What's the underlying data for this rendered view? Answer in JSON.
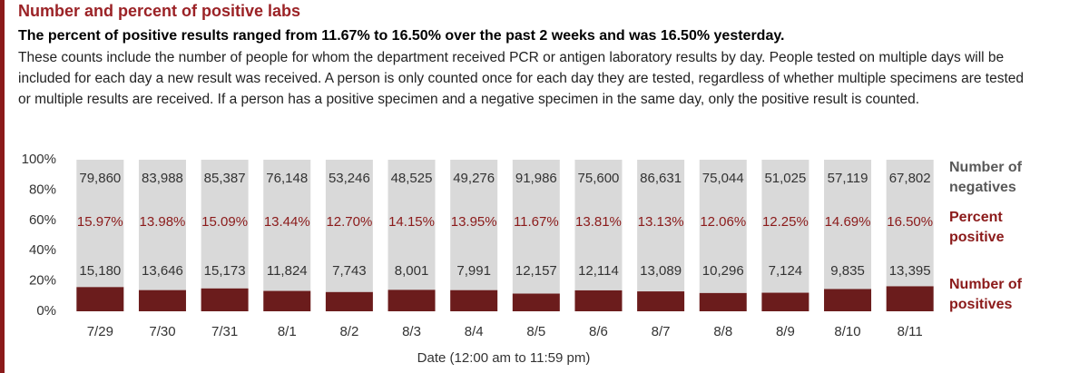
{
  "chart_data": {
    "type": "bar",
    "stacking": "percent",
    "title": "Number and percent of positive labs",
    "subtitle": "The percent of positive results ranged from 11.67% to 16.50% over the past 2 weeks and was 16.50% yesterday.",
    "description": "These counts include the number of people for whom the department received PCR or antigen laboratory results by day. People tested on multiple days will be included for each day a new result was received. A person is only counted once for each day they are tested, regardless of whether multiple specimens are tested or multiple results are received. If a person has a positive specimen and a negative specimen in the same day, only the positive result is counted.",
    "xlabel": "Date (12:00 am to 11:59 pm)",
    "categories": [
      "7/29",
      "7/30",
      "7/31",
      "8/1",
      "8/2",
      "8/3",
      "8/4",
      "8/5",
      "8/6",
      "8/7",
      "8/8",
      "8/9",
      "8/10",
      "8/11"
    ],
    "series": [
      {
        "name": "Number of negatives",
        "color": "#d9d9d9",
        "label_color": "#595959",
        "values": [
          79860,
          83988,
          85387,
          76148,
          53246,
          48525,
          49276,
          91986,
          75600,
          86631,
          75044,
          51025,
          57119,
          67802
        ],
        "value_labels": [
          "79,860",
          "83,988",
          "85,387",
          "76,148",
          "53,246",
          "48,525",
          "49,276",
          "91,986",
          "75,600",
          "86,631",
          "75,044",
          "51,025",
          "57,119",
          "67,802"
        ]
      },
      {
        "name": "Number of positives",
        "color": "#6b1c1c",
        "label_color": "#8b1a1a",
        "values": [
          15180,
          13646,
          15173,
          11824,
          7743,
          8001,
          7991,
          12157,
          12114,
          13089,
          10296,
          7124,
          9835,
          13395
        ],
        "value_labels": [
          "15,180",
          "13,646",
          "15,173",
          "11,824",
          "7,743",
          "8,001",
          "7,991",
          "12,157",
          "12,114",
          "13,089",
          "10,296",
          "7,124",
          "9,835",
          "13,395"
        ]
      }
    ],
    "percent_positive": {
      "name": "Percent positive",
      "color": "#8b1a1a",
      "values": [
        15.97,
        13.98,
        15.09,
        13.44,
        12.7,
        14.15,
        13.95,
        11.67,
        13.81,
        13.13,
        12.06,
        12.25,
        14.69,
        16.5
      ],
      "value_labels": [
        "15.97%",
        "13.98%",
        "15.09%",
        "13.44%",
        "12.70%",
        "14.15%",
        "13.95%",
        "11.67%",
        "13.81%",
        "13.13%",
        "12.06%",
        "12.25%",
        "14.69%",
        "16.50%"
      ]
    },
    "ylim": [
      0,
      100
    ],
    "yticks": [
      {
        "value": 0,
        "label": "0%"
      },
      {
        "value": 20,
        "label": "20%"
      },
      {
        "value": 40,
        "label": "40%"
      },
      {
        "value": 60,
        "label": "60%"
      },
      {
        "value": 80,
        "label": "80%"
      },
      {
        "value": 100,
        "label": "100%"
      }
    ]
  }
}
